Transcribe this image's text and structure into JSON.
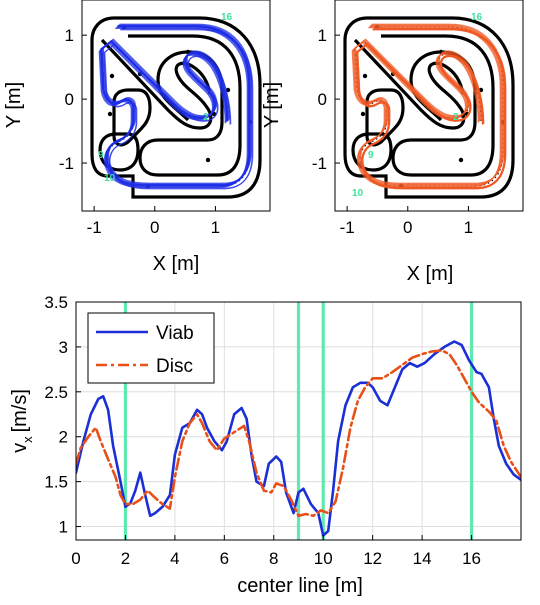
{
  "chart_data": [
    {
      "type": "line",
      "panel": "track-viab",
      "xlabel": "X [m]",
      "ylabel": "Y [m]",
      "xlim": [
        -1.2,
        1.9
      ],
      "ylim": [
        -1.75,
        1.55
      ],
      "x_ticks": [
        "-1",
        "0",
        "1"
      ],
      "y_ticks": [
        "1",
        "0",
        "-1"
      ],
      "trajectory_color": "#1f2fe6",
      "track_markers": [
        "16",
        "2",
        "9",
        "10"
      ]
    },
    {
      "type": "line",
      "panel": "track-disc",
      "xlabel": "X [m]",
      "ylabel": "Y [m]",
      "xlim": [
        -1.2,
        1.9
      ],
      "ylim": [
        -1.75,
        1.55
      ],
      "x_ticks": [
        "-1",
        "0",
        "1"
      ],
      "y_ticks": [
        "1",
        "0",
        "-1"
      ],
      "trajectory_color": "#f05a24",
      "track_markers": [
        "16",
        "2",
        "9",
        "10"
      ]
    },
    {
      "type": "line",
      "panel": "velocity-profile",
      "xlabel": "center line [m]",
      "ylabel": "v",
      "ylabel_sub": "x",
      "ylabel_unit": "[m/s]",
      "xlim": [
        0,
        18
      ],
      "ylim": [
        0.85,
        3.5
      ],
      "x_ticks": [
        "0",
        "2",
        "4",
        "6",
        "8",
        "10",
        "12",
        "14",
        "16"
      ],
      "y_ticks": [
        "1",
        "1.5",
        "2",
        "2.5",
        "3",
        "3.5"
      ],
      "grid": true,
      "legend_position": "top-left",
      "markers_at": [
        2,
        9,
        10,
        16
      ],
      "marker_color": "#5fe8b0",
      "series": [
        {
          "name": "Viab",
          "color": "#1a2fd6",
          "style": "solid",
          "x": [
            0,
            0.3,
            0.6,
            0.9,
            1.1,
            1.3,
            1.5,
            1.8,
            2.0,
            2.2,
            2.4,
            2.6,
            2.8,
            3.0,
            3.2,
            3.5,
            3.8,
            4.0,
            4.3,
            4.6,
            4.9,
            5.1,
            5.3,
            5.6,
            5.9,
            6.1,
            6.4,
            6.7,
            6.9,
            7.1,
            7.3,
            7.6,
            7.8,
            8.1,
            8.3,
            8.5,
            8.8,
            9.0,
            9.2,
            9.5,
            9.8,
            10.0,
            10.2,
            10.4,
            10.6,
            10.9,
            11.2,
            11.5,
            11.8,
            12.0,
            12.3,
            12.6,
            12.9,
            13.2,
            13.5,
            13.8,
            14.1,
            14.5,
            14.9,
            15.3,
            15.6,
            15.9,
            16.2,
            16.4,
            16.7,
            16.9,
            17.1,
            17.4,
            17.7,
            18.0
          ],
          "y": [
            1.6,
            1.95,
            2.25,
            2.42,
            2.45,
            2.3,
            1.9,
            1.5,
            1.22,
            1.26,
            1.4,
            1.6,
            1.35,
            1.12,
            1.15,
            1.22,
            1.35,
            1.8,
            2.1,
            2.15,
            2.3,
            2.25,
            2.1,
            1.95,
            1.85,
            1.95,
            2.25,
            2.32,
            2.2,
            1.8,
            1.5,
            1.45,
            1.7,
            1.78,
            1.72,
            1.38,
            1.15,
            1.38,
            1.42,
            1.25,
            1.15,
            0.9,
            0.95,
            1.4,
            1.95,
            2.35,
            2.55,
            2.6,
            2.6,
            2.55,
            2.4,
            2.35,
            2.55,
            2.75,
            2.82,
            2.78,
            2.82,
            2.92,
            3.0,
            3.06,
            3.02,
            2.85,
            2.72,
            2.7,
            2.55,
            2.2,
            1.9,
            1.7,
            1.58,
            1.52
          ]
        },
        {
          "name": "Disc",
          "color": "#e8501a",
          "style": "dash-dot",
          "x": [
            0,
            0.2,
            0.5,
            0.8,
            1.0,
            1.3,
            1.6,
            1.8,
            2.0,
            2.3,
            2.6,
            2.9,
            3.2,
            3.5,
            3.8,
            4.0,
            4.3,
            4.6,
            4.9,
            5.1,
            5.4,
            5.7,
            6.0,
            6.4,
            6.8,
            7.0,
            7.3,
            7.6,
            7.9,
            8.1,
            8.4,
            8.7,
            9.0,
            9.3,
            9.6,
            9.9,
            10.2,
            10.5,
            10.8,
            11.1,
            11.4,
            11.7,
            12.0,
            12.4,
            12.8,
            13.2,
            13.6,
            14.0,
            14.4,
            14.8,
            15.1,
            15.4,
            15.7,
            16.0,
            16.3,
            16.7,
            17.0,
            17.3,
            17.6,
            18.0
          ],
          "y": [
            1.7,
            1.88,
            2.0,
            2.1,
            1.95,
            1.75,
            1.55,
            1.35,
            1.25,
            1.25,
            1.3,
            1.4,
            1.32,
            1.25,
            1.2,
            1.55,
            1.95,
            2.15,
            2.25,
            2.15,
            1.95,
            1.85,
            1.98,
            2.05,
            2.12,
            1.95,
            1.6,
            1.4,
            1.38,
            1.48,
            1.45,
            1.3,
            1.12,
            1.14,
            1.12,
            1.18,
            1.15,
            1.28,
            1.65,
            2.1,
            2.4,
            2.55,
            2.65,
            2.65,
            2.72,
            2.8,
            2.88,
            2.92,
            2.95,
            2.96,
            2.92,
            2.8,
            2.65,
            2.5,
            2.38,
            2.28,
            2.18,
            1.9,
            1.72,
            1.55
          ]
        }
      ]
    }
  ]
}
